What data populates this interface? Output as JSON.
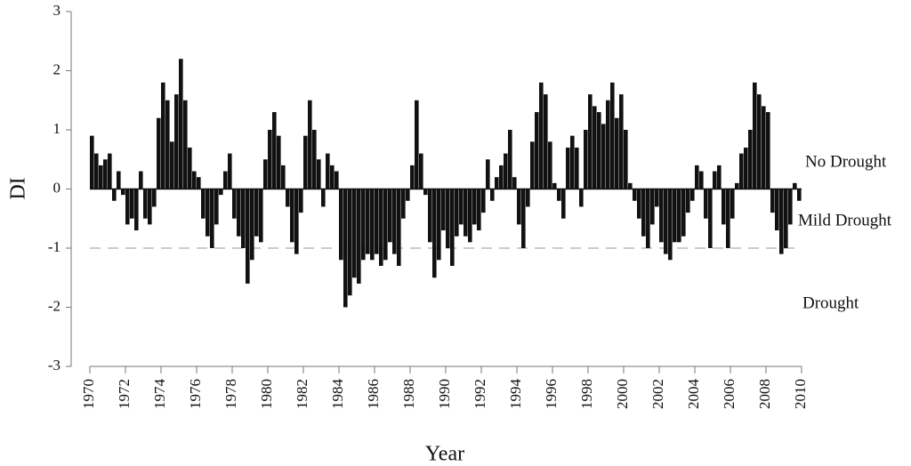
{
  "chart_data": {
    "type": "bar",
    "x_label": "Year",
    "y_label": "DI",
    "color": "#111111",
    "annotations": [
      "No Drought",
      "Mild Drought",
      "Drought"
    ],
    "reference_line": -1,
    "xlim": [
      1970,
      2010
    ],
    "xticks": [
      1970,
      1972,
      1974,
      1976,
      1978,
      1980,
      1982,
      1984,
      1986,
      1988,
      1990,
      1992,
      1994,
      1996,
      1998,
      2000,
      2002,
      2004,
      2006,
      2008,
      2010
    ],
    "ylim": [
      -3,
      3
    ],
    "yticks": [
      -3,
      -2,
      -1,
      0,
      1,
      2,
      3
    ],
    "x": [
      1970,
      1970.25,
      1970.5,
      1970.75,
      1971,
      1971.25,
      1971.5,
      1971.75,
      1972,
      1972.25,
      1972.5,
      1972.75,
      1973,
      1973.25,
      1973.5,
      1973.75,
      1974,
      1974.25,
      1974.5,
      1974.75,
      1975,
      1975.25,
      1975.5,
      1975.75,
      1976,
      1976.25,
      1976.5,
      1976.75,
      1977,
      1977.25,
      1977.5,
      1977.75,
      1978,
      1978.25,
      1978.5,
      1978.75,
      1979,
      1979.25,
      1979.5,
      1979.75,
      1980,
      1980.25,
      1980.5,
      1980.75,
      1981,
      1981.25,
      1981.5,
      1981.75,
      1982,
      1982.25,
      1982.5,
      1982.75,
      1983,
      1983.25,
      1983.5,
      1983.75,
      1984,
      1984.25,
      1984.5,
      1984.75,
      1985,
      1985.25,
      1985.5,
      1985.75,
      1986,
      1986.25,
      1986.5,
      1986.75,
      1987,
      1987.25,
      1987.5,
      1987.75,
      1988,
      1988.25,
      1988.5,
      1988.75,
      1989,
      1989.25,
      1989.5,
      1989.75,
      1990,
      1990.25,
      1990.5,
      1990.75,
      1991,
      1991.25,
      1991.5,
      1991.75,
      1992,
      1992.25,
      1992.5,
      1992.75,
      1993,
      1993.25,
      1993.5,
      1993.75,
      1994,
      1994.25,
      1994.5,
      1994.75,
      1995,
      1995.25,
      1995.5,
      1995.75,
      1996,
      1996.25,
      1996.5,
      1996.75,
      1997,
      1997.25,
      1997.5,
      1997.75,
      1998,
      1998.25,
      1998.5,
      1998.75,
      1999,
      1999.25,
      1999.5,
      1999.75,
      2000,
      2000.25,
      2000.5,
      2000.75,
      2001,
      2001.25,
      2001.5,
      2001.75,
      2002,
      2002.25,
      2002.5,
      2002.75,
      2003,
      2003.25,
      2003.5,
      2003.75,
      2004,
      2004.25,
      2004.5,
      2004.75,
      2005,
      2005.25,
      2005.5,
      2005.75,
      2006,
      2006.25,
      2006.5,
      2006.75,
      2007,
      2007.25,
      2007.5,
      2007.75,
      2008,
      2008.25,
      2008.5,
      2008.75,
      2009,
      2009.25,
      2009.5,
      2009.75
    ],
    "values": [
      0.9,
      0.6,
      0.4,
      0.5,
      0.6,
      -0.2,
      0.3,
      -0.1,
      -0.6,
      -0.5,
      -0.7,
      0.3,
      -0.5,
      -0.6,
      -0.3,
      1.2,
      1.8,
      1.5,
      0.8,
      1.6,
      2.2,
      1.5,
      0.7,
      0.3,
      0.2,
      -0.5,
      -0.8,
      -1.0,
      -0.6,
      -0.1,
      0.3,
      0.6,
      -0.5,
      -0.8,
      -1.0,
      -1.6,
      -1.2,
      -0.8,
      -0.9,
      0.5,
      1.0,
      1.3,
      0.9,
      0.4,
      -0.3,
      -0.9,
      -1.1,
      -0.4,
      0.9,
      1.5,
      1.0,
      0.5,
      -0.3,
      0.6,
      0.4,
      0.3,
      -1.2,
      -2.0,
      -1.8,
      -1.5,
      -1.6,
      -1.2,
      -1.1,
      -1.2,
      -1.1,
      -1.3,
      -1.2,
      -0.9,
      -1.1,
      -1.3,
      -0.5,
      -0.2,
      0.4,
      1.5,
      0.6,
      -0.1,
      -0.9,
      -1.5,
      -1.2,
      -0.7,
      -1.0,
      -1.3,
      -0.8,
      -0.6,
      -0.8,
      -0.9,
      -0.6,
      -0.7,
      -0.4,
      0.5,
      -0.2,
      0.2,
      0.4,
      0.6,
      1.0,
      0.2,
      -0.6,
      -1.0,
      -0.3,
      0.8,
      1.3,
      1.8,
      1.6,
      0.8,
      0.1,
      -0.2,
      -0.5,
      0.7,
      0.9,
      0.7,
      -0.3,
      1.0,
      1.6,
      1.4,
      1.3,
      1.1,
      1.5,
      1.8,
      1.2,
      1.6,
      1.0,
      0.1,
      -0.2,
      -0.5,
      -0.8,
      -1.0,
      -0.6,
      -0.3,
      -0.9,
      -1.1,
      -1.2,
      -0.9,
      -0.9,
      -0.8,
      -0.4,
      -0.2,
      0.4,
      0.3,
      -0.5,
      -1.0,
      0.3,
      0.4,
      -0.6,
      -1.0,
      -0.5,
      0.1,
      0.6,
      0.7,
      1.0,
      1.8,
      1.6,
      1.4,
      1.3,
      -0.4,
      -0.7,
      -1.1,
      -1.0,
      -0.6,
      0.1,
      -0.2
    ]
  }
}
